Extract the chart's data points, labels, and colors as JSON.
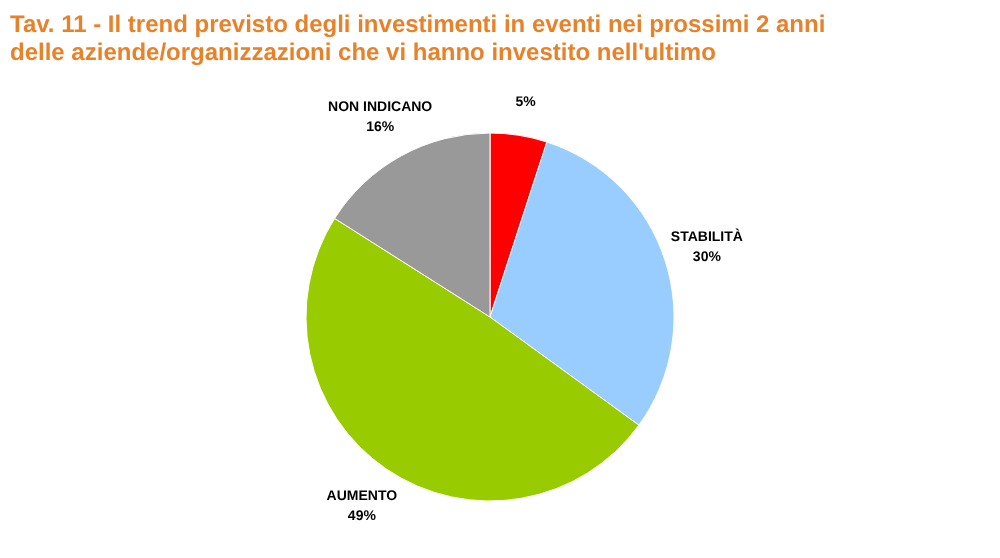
{
  "chart_data": {
    "type": "pie",
    "title": "Tav. 11 - Il trend previsto degli investimenti in eventi nei prossimi 2 anni delle aziende/organizzazioni che vi hanno investito nell'ultimo",
    "categories": [
      null,
      "STABILITÀ",
      "AUMENTO",
      "NON INDICANO"
    ],
    "values": [
      5,
      30,
      49,
      16
    ],
    "value_labels": [
      "5%",
      "30%",
      "49%",
      "16%"
    ],
    "colors": [
      "#ff0000",
      "#99ccff",
      "#99cc00",
      "#999999"
    ]
  }
}
